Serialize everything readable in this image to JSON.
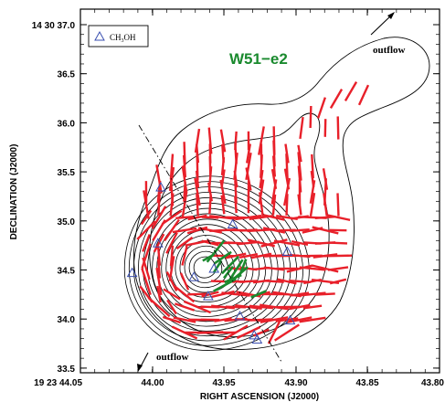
{
  "figure": {
    "title": "W51−e2",
    "xlabel": "RIGHT ASCENSION (J2000)",
    "ylabel": "DECLINATION (J2000)",
    "legend_label": "CH",
    "legend_sub": "3",
    "legend_label_end": "OH",
    "legend_marker": "triangle-icon",
    "outflow_top": "outflow",
    "outflow_bottom": "outflow",
    "colors": {
      "title": "#1a8a2e",
      "vectors_red": "#e8202a",
      "vectors_green": "#1a8a2e",
      "markers": "#3a4fb0",
      "contours": "#000000"
    }
  },
  "chart_data": {
    "type": "contour-map",
    "xticks": [
      "19 23 44.05",
      "44.00",
      "43.95",
      "43.90",
      "43.85",
      "43.80"
    ],
    "yticks": [
      "14 30 37.0",
      "36.5",
      "36.0",
      "35.5",
      "35.0",
      "34.5",
      "34.0",
      "33.5"
    ],
    "xlim": [
      44.05,
      43.8
    ],
    "ylim": [
      33.4,
      37.1
    ],
    "grid": false,
    "legend_position": "top-left",
    "peak": {
      "ra": 43.964,
      "dec": 34.7
    },
    "markers_ch3oh": [
      {
        "ra": 43.994,
        "dec": 35.46
      },
      {
        "ra": 43.996,
        "dec": 34.93
      },
      {
        "ra": 43.944,
        "dec": 35.11
      },
      {
        "ra": 43.906,
        "dec": 34.85
      },
      {
        "ra": 44.014,
        "dec": 34.65
      },
      {
        "ra": 43.957,
        "dec": 34.69
      },
      {
        "ra": 43.971,
        "dec": 34.61
      },
      {
        "ra": 43.961,
        "dec": 34.43
      },
      {
        "ra": 43.939,
        "dec": 34.24
      },
      {
        "ra": 43.904,
        "dec": 34.2
      },
      {
        "ra": 43.929,
        "dec": 34.06
      },
      {
        "ra": 43.927,
        "dec": 34.02
      }
    ]
  }
}
